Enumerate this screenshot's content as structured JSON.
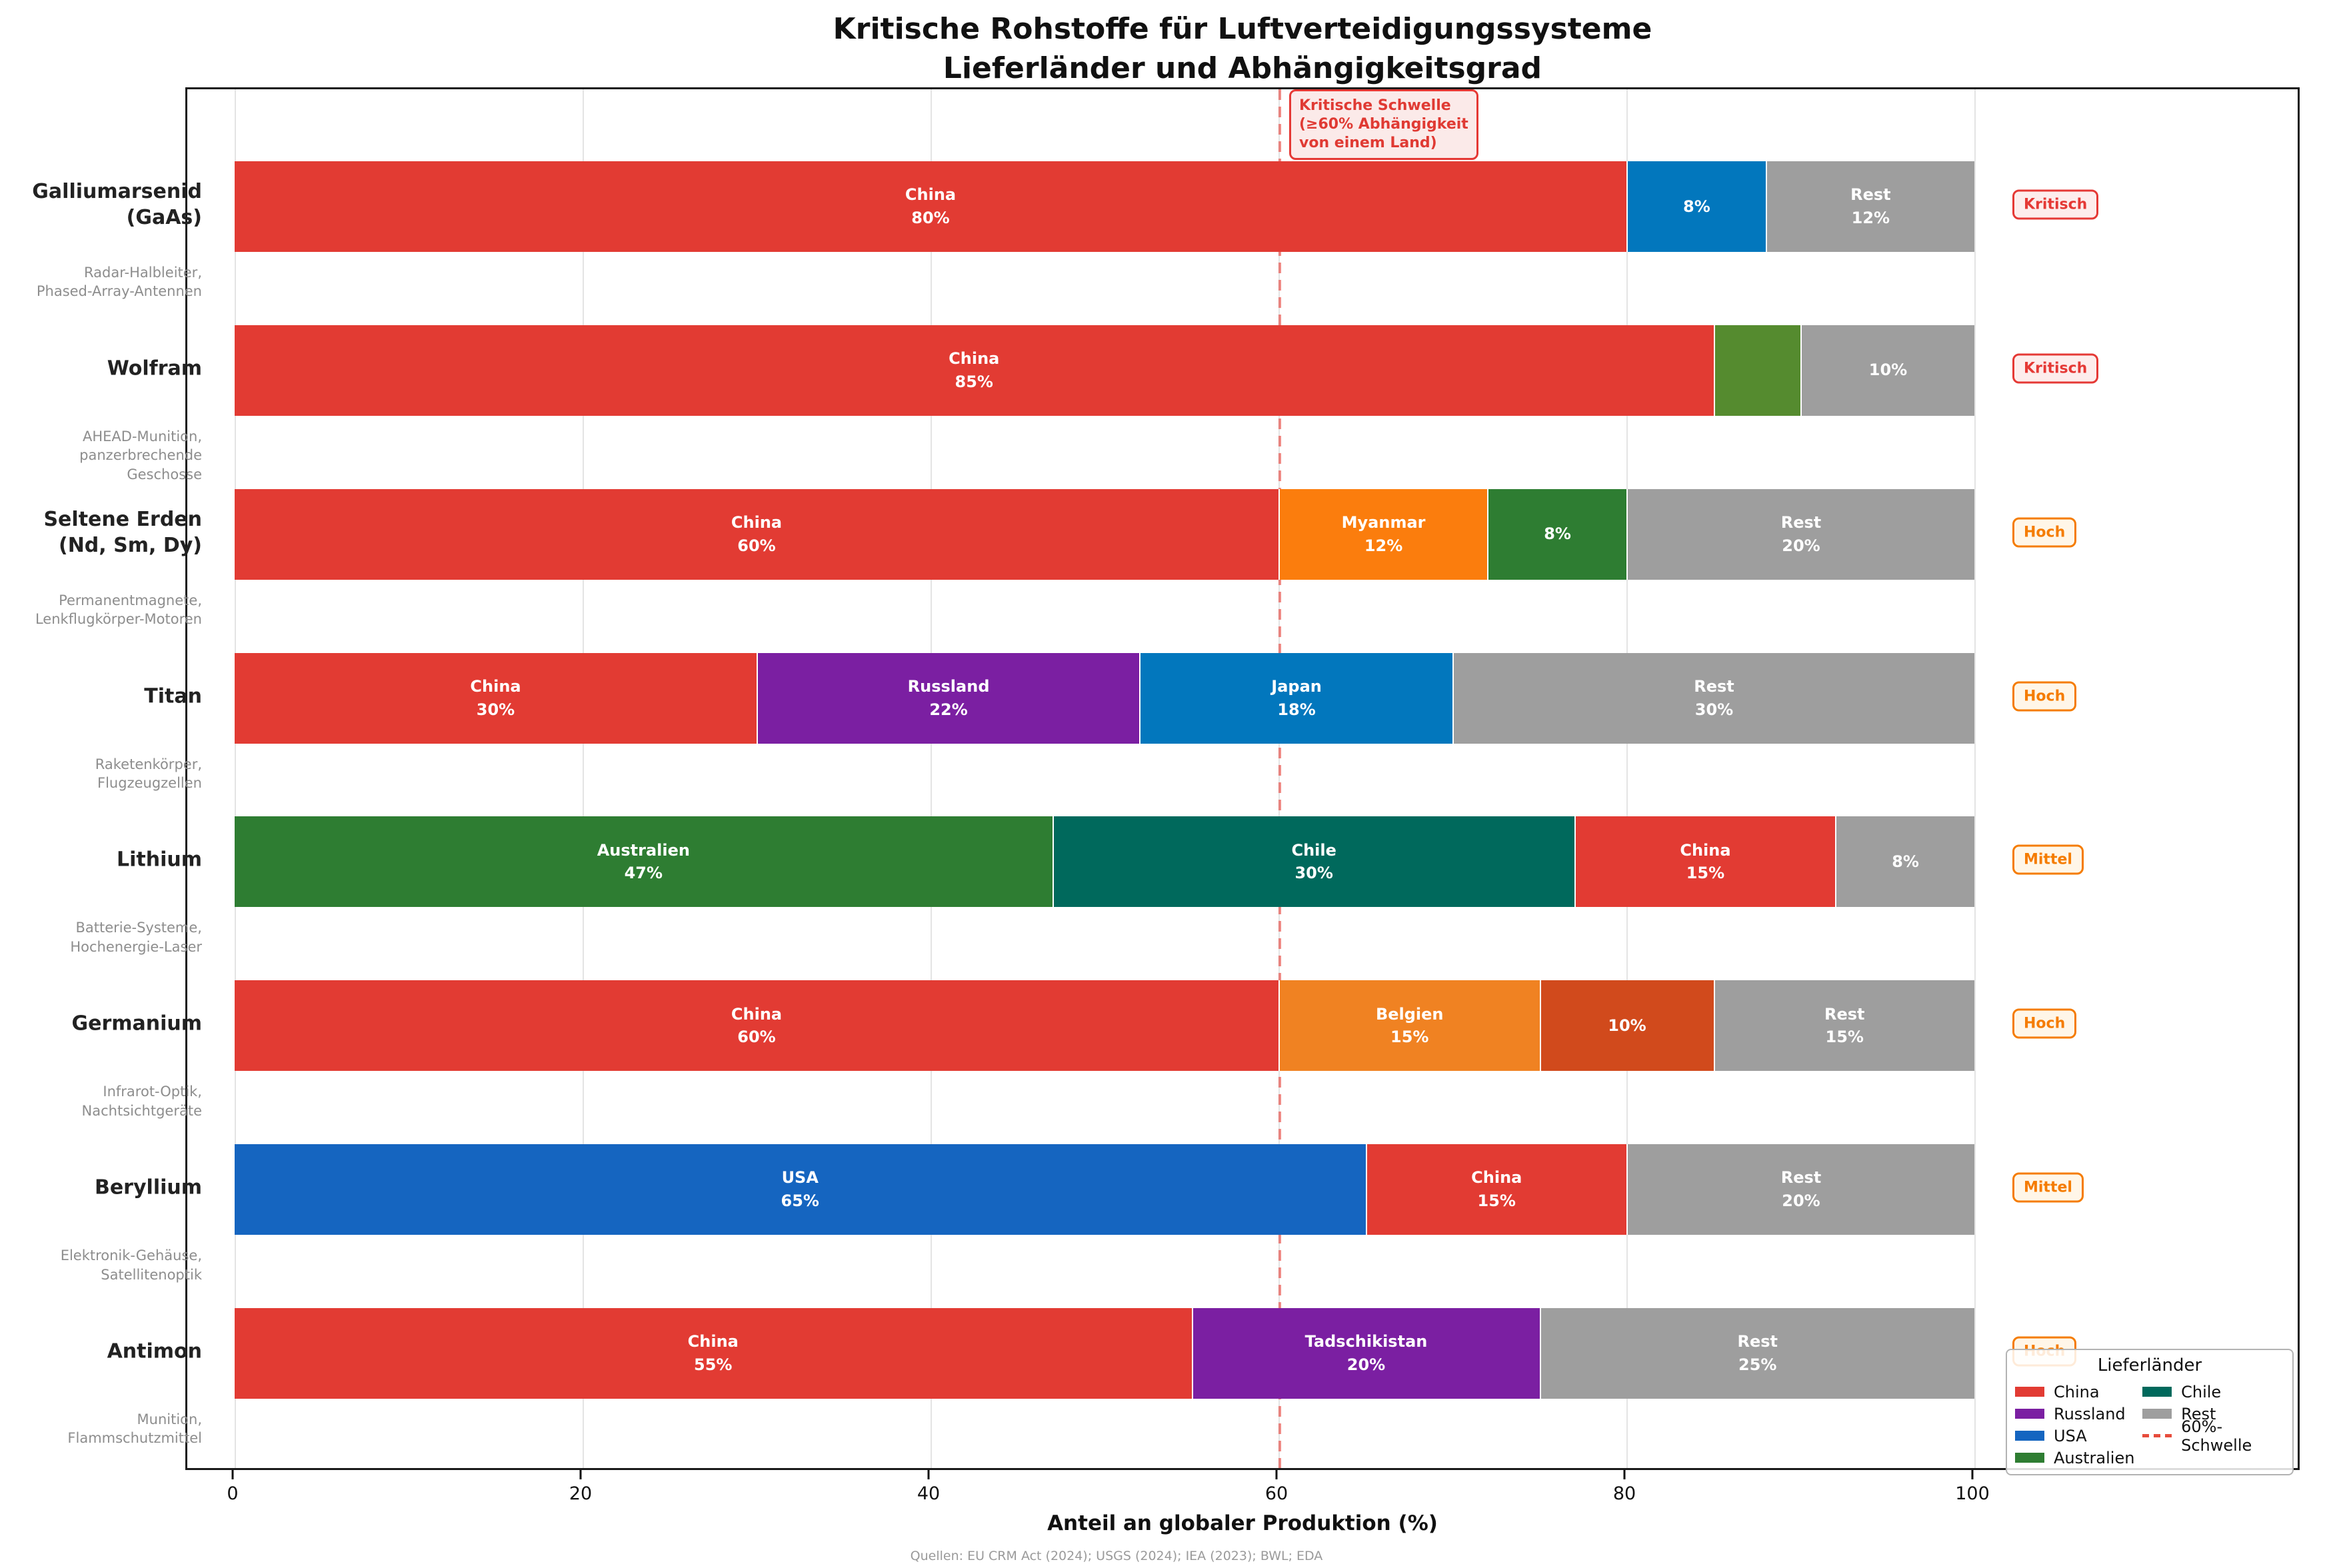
{
  "title_line1": "Kritische Rohstoffe für Luftverteidigungssysteme",
  "title_line2": "Lieferländer und Abhängigkeitsgrad",
  "annotation_text": "Kritische Schwelle\n(≥60% Abhängigkeit\nvon einem Land)",
  "xlabel": "Anteil an globaler Produktion (%)",
  "source": "Quellen: EU CRM Act (2024); USGS (2024); IEA (2023); BWL; EDA",
  "legend": {
    "title": "Lieferländer",
    "entries": [
      {
        "label": "China",
        "color": "#E23B33",
        "style": "patch"
      },
      {
        "label": "Russland",
        "color": "#7B1FA2",
        "style": "patch"
      },
      {
        "label": "USA",
        "color": "#1565C0",
        "style": "patch"
      },
      {
        "label": "Australien",
        "color": "#2E7D32",
        "style": "patch"
      },
      {
        "label": "Chile",
        "color": "#00695C",
        "style": "patch"
      },
      {
        "label": "Rest",
        "color": "#9E9E9E",
        "style": "patch"
      },
      {
        "label": "60%-Schwelle",
        "color": "#E74C3C",
        "style": "dash"
      }
    ]
  },
  "risk_styles": {
    "Kritisch": {
      "fg": "#E53935",
      "bg": "#FDEDEC"
    },
    "Hoch": {
      "fg": "#F57C00",
      "bg": "#FFF6E8"
    },
    "Mittel": {
      "fg": "#F57C00",
      "bg": "#FFF6E8"
    }
  },
  "chart_data": {
    "type": "bar",
    "orientation": "horizontal-stacked",
    "title": "Kritische Rohstoffe für Luftverteidigungssysteme — Lieferländer und Abhängigkeitsgrad",
    "xlabel": "Anteil an globaler Produktion (%)",
    "xlim": [
      0,
      100
    ],
    "x_ticks": [
      0,
      20,
      40,
      60,
      80,
      100
    ],
    "grid": true,
    "legend_position": "lower right",
    "threshold": {
      "x": 60,
      "label": "60%-Schwelle"
    },
    "rows": [
      {
        "material": "Galliumarsenid (GaAs)",
        "application": "Radar-Halbleiter,\nPhased-Array-Antennen",
        "risk": "Kritisch",
        "segments": [
          {
            "country": "China",
            "value": 80,
            "color": "#E23B33",
            "label": "China\n80%"
          },
          {
            "country": "",
            "value": 8,
            "color": "#0277BD",
            "label": "8%"
          },
          {
            "country": "Rest",
            "value": 12,
            "color": "#9E9E9E",
            "label": "Rest\n12%"
          }
        ]
      },
      {
        "material": "Wolfram",
        "application": "AHEAD-Munition,\npanzerbrechende Geschosse",
        "risk": "Kritisch",
        "segments": [
          {
            "country": "China",
            "value": 85,
            "color": "#E23B33",
            "label": "China\n85%"
          },
          {
            "country": "",
            "value": 5,
            "color": "#558B2F",
            "label": ""
          },
          {
            "country": "Rest",
            "value": 10,
            "color": "#9E9E9E",
            "label": "10%"
          }
        ]
      },
      {
        "material": "Seltene Erden\n(Nd, Sm, Dy)",
        "application": "Permanentmagnete,\nLenkflugkörper-Motoren",
        "risk": "Hoch",
        "segments": [
          {
            "country": "China",
            "value": 60,
            "color": "#E23B33",
            "label": "China\n60%"
          },
          {
            "country": "Myanmar",
            "value": 12,
            "color": "#FB7D0D",
            "label": "Myanmar\n12%"
          },
          {
            "country": "",
            "value": 8,
            "color": "#2E7D32",
            "label": "8%"
          },
          {
            "country": "Rest",
            "value": 20,
            "color": "#9E9E9E",
            "label": "Rest\n20%"
          }
        ]
      },
      {
        "material": "Titan",
        "application": "Raketenkörper,\nFlugzeugzellen",
        "risk": "Hoch",
        "segments": [
          {
            "country": "China",
            "value": 30,
            "color": "#E23B33",
            "label": "China\n30%"
          },
          {
            "country": "Russland",
            "value": 22,
            "color": "#7B1FA2",
            "label": "Russland\n22%"
          },
          {
            "country": "Japan",
            "value": 18,
            "color": "#0277BD",
            "label": "Japan\n18%"
          },
          {
            "country": "Rest",
            "value": 30,
            "color": "#9E9E9E",
            "label": "Rest\n30%"
          }
        ]
      },
      {
        "material": "Lithium",
        "application": "Batterie-Systeme,\nHochenergie-Laser",
        "risk": "Mittel",
        "segments": [
          {
            "country": "Australien",
            "value": 47,
            "color": "#2E7D32",
            "label": "Australien\n47%"
          },
          {
            "country": "Chile",
            "value": 30,
            "color": "#00695C",
            "label": "Chile\n30%"
          },
          {
            "country": "China",
            "value": 15,
            "color": "#E23B33",
            "label": "China\n15%"
          },
          {
            "country": "Rest",
            "value": 8,
            "color": "#9E9E9E",
            "label": "8%"
          }
        ]
      },
      {
        "material": "Germanium",
        "application": "Infrarot-Optik,\nNachtsichtgeräte",
        "risk": "Hoch",
        "segments": [
          {
            "country": "China",
            "value": 60,
            "color": "#E23B33",
            "label": "China\n60%"
          },
          {
            "country": "Belgien",
            "value": 15,
            "color": "#F08222",
            "label": "Belgien\n15%"
          },
          {
            "country": "",
            "value": 10,
            "color": "#D14A1C",
            "label": "10%"
          },
          {
            "country": "Rest",
            "value": 15,
            "color": "#9E9E9E",
            "label": "Rest\n15%"
          }
        ]
      },
      {
        "material": "Beryllium",
        "application": "Elektronik-Gehäuse,\nSatellitenoptik",
        "risk": "Mittel",
        "segments": [
          {
            "country": "USA",
            "value": 65,
            "color": "#1565C0",
            "label": "USA\n65%"
          },
          {
            "country": "China",
            "value": 15,
            "color": "#E23B33",
            "label": "China\n15%"
          },
          {
            "country": "Rest",
            "value": 20,
            "color": "#9E9E9E",
            "label": "Rest\n20%"
          }
        ]
      },
      {
        "material": "Antimon",
        "application": "Munition,\nFlammschutzmittel",
        "risk": "Hoch",
        "segments": [
          {
            "country": "China",
            "value": 55,
            "color": "#E23B33",
            "label": "China\n55%"
          },
          {
            "country": "Tadschikistan",
            "value": 20,
            "color": "#7B1FA2",
            "label": "Tadschikistan\n20%"
          },
          {
            "country": "Rest",
            "value": 25,
            "color": "#9E9E9E",
            "label": "Rest\n25%"
          }
        ]
      }
    ]
  }
}
